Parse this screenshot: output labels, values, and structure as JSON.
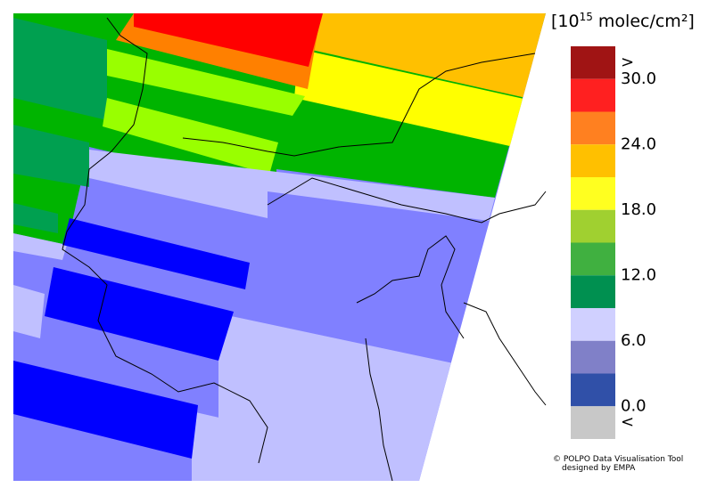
{
  "legend": {
    "title": {
      "open": "[10",
      "exponent": "15",
      "unit": " molec/cm²]"
    },
    "labels": [
      ">",
      "30.0",
      "24.0",
      "18.0",
      "12.0",
      "6.0",
      "0.0",
      "<"
    ],
    "colors": [
      "#a01414",
      "#ff2020",
      "#ff8020",
      "#ffc000",
      "#ffff20",
      "#a0d030",
      "#40b040",
      "#009050",
      "#d0d0ff",
      "#8080c8",
      "#3050a8",
      "#c8c8c8"
    ]
  },
  "credit": {
    "line1": "© POLPO Data Visualisation Tool",
    "line2": "designed by EMPA"
  }
}
